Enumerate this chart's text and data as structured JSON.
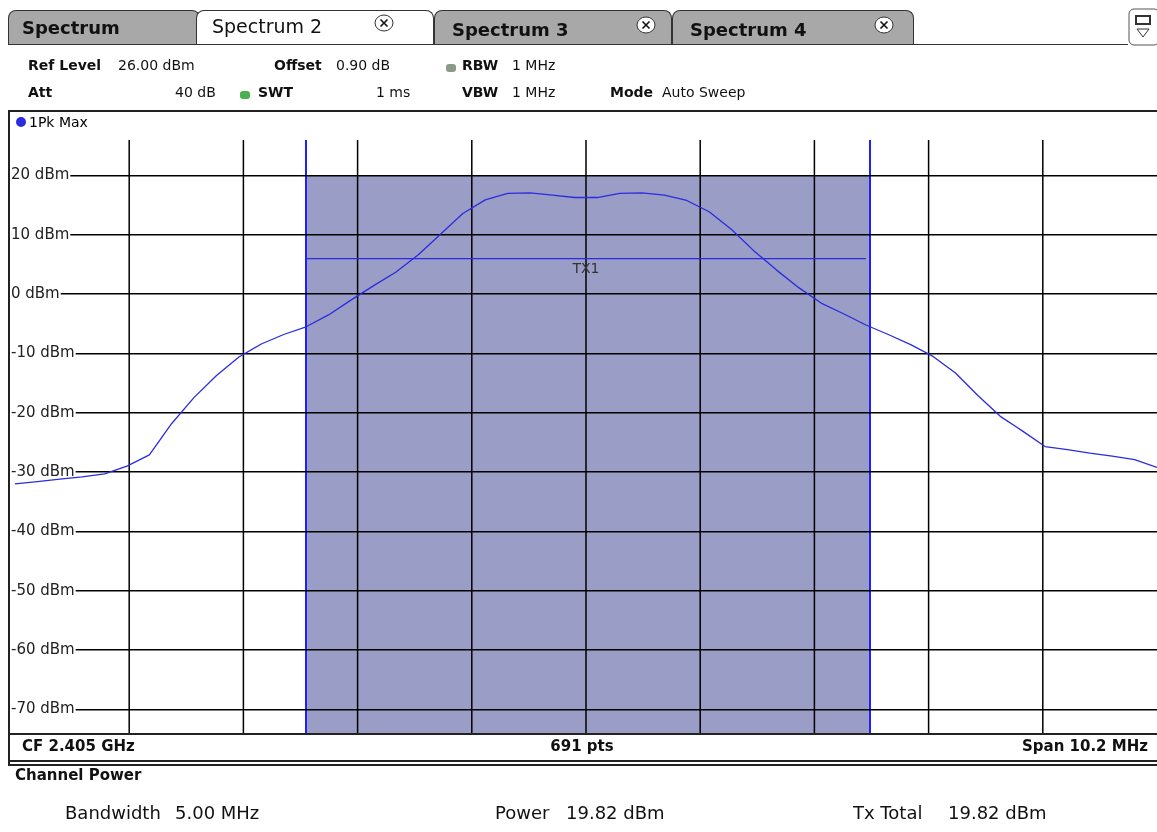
{
  "chart_data": {
    "type": "line",
    "annotations": [
      "Spectrum",
      "Spectrum 2",
      "Spectrum 3",
      "Spectrum 4",
      "Ref Level",
      "26.00 dBm",
      "Offset",
      "0.90 dB",
      "RBW",
      "1 MHz",
      "Att",
      "40 dB",
      "SWT",
      "1 ms",
      "VBW",
      "1 MHz",
      "Mode",
      "Auto Sweep",
      "CF 2.405 GHz",
      "691 pts",
      "Span 10.2 MHz",
      "Channel Power",
      "Bandwidth",
      "5.00 MHz",
      "Power",
      "19.82 dBm",
      "Tx Total",
      "19.82 dBm"
    ],
    "categories": [
      null,
      null,
      null,
      null,
      null,
      null,
      null,
      null,
      null,
      null,
      null,
      null,
      null,
      null,
      null,
      null,
      null,
      null,
      null,
      null,
      null,
      null,
      null,
      null,
      null,
      null,
      null,
      null,
      null,
      null,
      null,
      null,
      null,
      null,
      null,
      null,
      null,
      null,
      null,
      null,
      null,
      null,
      null,
      null,
      null,
      null,
      null,
      null,
      null,
      null,
      null,
      null
    ],
    "series": [
      {
        "name": "1Pk Max",
        "color": "#2b2bdf",
        "values": [
          -32.0,
          -31.6,
          -31.2,
          -30.8,
          -30.3,
          -29.0,
          -27.1,
          -21.8,
          -17.4,
          -13.7,
          -10.6,
          -8.4,
          -6.8,
          -5.5,
          -3.5,
          -1.0,
          1.4,
          3.7,
          6.6,
          10.1,
          13.6,
          15.9,
          17.0,
          17.1,
          16.7,
          16.3,
          16.3,
          17.0,
          17.1,
          16.7,
          15.8,
          13.9,
          10.9,
          7.3,
          4.1,
          1.1,
          -1.5,
          -3.3,
          -5.2,
          -6.8,
          -8.5,
          -10.5,
          -13.3,
          -17.1,
          -20.6,
          -23.1,
          -25.7,
          -26.2,
          -26.8,
          -27.3,
          -27.9,
          -29.2
        ]
      }
    ],
    "ylim": [
      -74,
      26
    ],
    "yticks": [
      {
        "value": -70,
        "label": "-70 dBm"
      },
      {
        "value": -60,
        "label": "-60 dBm"
      },
      {
        "value": -50,
        "label": "-50 dBm"
      },
      {
        "value": -40,
        "label": "-40 dBm"
      },
      {
        "value": -30,
        "label": "-30 dBm"
      },
      {
        "value": -20,
        "label": "-20 dBm"
      },
      {
        "value": -10,
        "label": "-10 dBm"
      },
      {
        "value": 0,
        "label": "0 dBm"
      },
      {
        "value": 10,
        "label": "10 dBm"
      },
      {
        "value": 20,
        "label": "20 dBm"
      }
    ],
    "tick_labels": "y",
    "grid": true,
    "legend": "top left",
    "marker": "none",
    "line_style": "solid",
    "ref_lines": [
      {
        "axis": "y",
        "value": 6,
        "label": "TX1",
        "color": "#2b2bdf"
      }
    ]
  }
}
